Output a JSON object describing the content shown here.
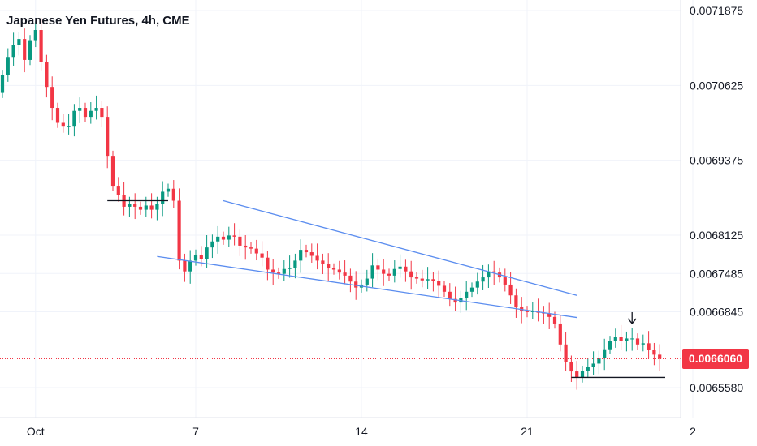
{
  "header": {
    "title": "Japanese Yen Futures, 4h, CME"
  },
  "colors": {
    "up": "#089981",
    "down": "#f23645",
    "trend": "#5b8def",
    "level": "#131722",
    "grid": "#f0f3fa"
  },
  "last_price": {
    "label": "0.0066060",
    "value": 0.006606,
    "color": "#f23645"
  },
  "chart_data": {
    "type": "candlestick",
    "title": "Japanese Yen Futures, 4h, CME",
    "ylim": [
      0.00652,
      0.00721
    ],
    "y_ticks": [
      {
        "label": "0.0071875",
        "value": 0.0071875
      },
      {
        "label": "0.0070625",
        "value": 0.0070625
      },
      {
        "label": "0.0069375",
        "value": 0.0069375
      },
      {
        "label": "0.0068125",
        "value": 0.0068125
      },
      {
        "label": "0.0067485",
        "value": 0.0067485
      },
      {
        "label": "0.0066845",
        "value": 0.0066845
      },
      {
        "label": "0.0065580",
        "value": 0.006558
      }
    ],
    "x_ticks": [
      {
        "label": "Oct",
        "bar": 6
      },
      {
        "label": "7",
        "bar": 35
      },
      {
        "label": "14",
        "bar": 65
      },
      {
        "label": "21",
        "bar": 95
      },
      {
        "label": "2",
        "bar": 125
      }
    ],
    "close": [
      0.00708,
      0.00711,
      0.00713,
      0.00714,
      0.007105,
      0.007138,
      0.007155,
      0.007102,
      0.00706,
      0.007025,
      0.007,
      0.006995,
      0.006995,
      0.00702,
      0.007025,
      0.00701,
      0.00702,
      0.007025,
      0.00701,
      0.006945,
      0.006895,
      0.00688,
      0.00686,
      0.006865,
      0.00686,
      0.006855,
      0.006862,
      0.006855,
      0.006865,
      0.006885,
      0.00689,
      0.00687,
      0.00677,
      0.006752,
      0.00677,
      0.00678,
      0.006772,
      0.006792,
      0.006802,
      0.00681,
      0.006805,
      0.006812,
      0.00681,
      0.006795,
      0.006792,
      0.00679,
      0.006782,
      0.006775,
      0.006755,
      0.00675,
      0.006748,
      0.006756,
      0.006758,
      0.00677,
      0.006788,
      0.006784,
      0.006778,
      0.00677,
      0.006765,
      0.006757,
      0.006755,
      0.00675,
      0.006745,
      0.006735,
      0.006725,
      0.00673,
      0.00674,
      0.006762,
      0.006755,
      0.006748,
      0.006745,
      0.006756,
      0.00676,
      0.006752,
      0.006742,
      0.00674,
      0.006737,
      0.006739,
      0.006736,
      0.006728,
      0.006718,
      0.006706,
      0.0067,
      0.006708,
      0.006718,
      0.006725,
      0.006735,
      0.006742,
      0.006752,
      0.00675,
      0.006742,
      0.00673,
      0.006712,
      0.006692,
      0.006686,
      0.006684,
      0.006686,
      0.006683,
      0.006682,
      0.006676,
      0.006665,
      0.00663,
      0.0066,
      0.006585,
      0.006575,
      0.006586,
      0.006593,
      0.006598,
      0.006608,
      0.006622,
      0.006636,
      0.006642,
      0.006636,
      0.00664,
      0.00664,
      0.00663,
      0.006632,
      0.006621,
      0.006613,
      0.006606
    ],
    "annotations": [
      {
        "type": "support",
        "price": 0.00687,
        "from_bar": 19,
        "to_bar": 30
      },
      {
        "type": "support",
        "price": 0.006575,
        "from_bar": 103,
        "to_bar": 120
      },
      {
        "type": "channel-upper",
        "from_bar": 40,
        "from_price": 0.00687,
        "to_bar": 104,
        "to_price": 0.006712
      },
      {
        "type": "channel-lower",
        "from_bar": 28,
        "from_price": 0.006777,
        "to_bar": 104,
        "to_price": 0.006675
      },
      {
        "type": "arrow-down",
        "bar": 114,
        "price": 0.006665
      }
    ]
  }
}
